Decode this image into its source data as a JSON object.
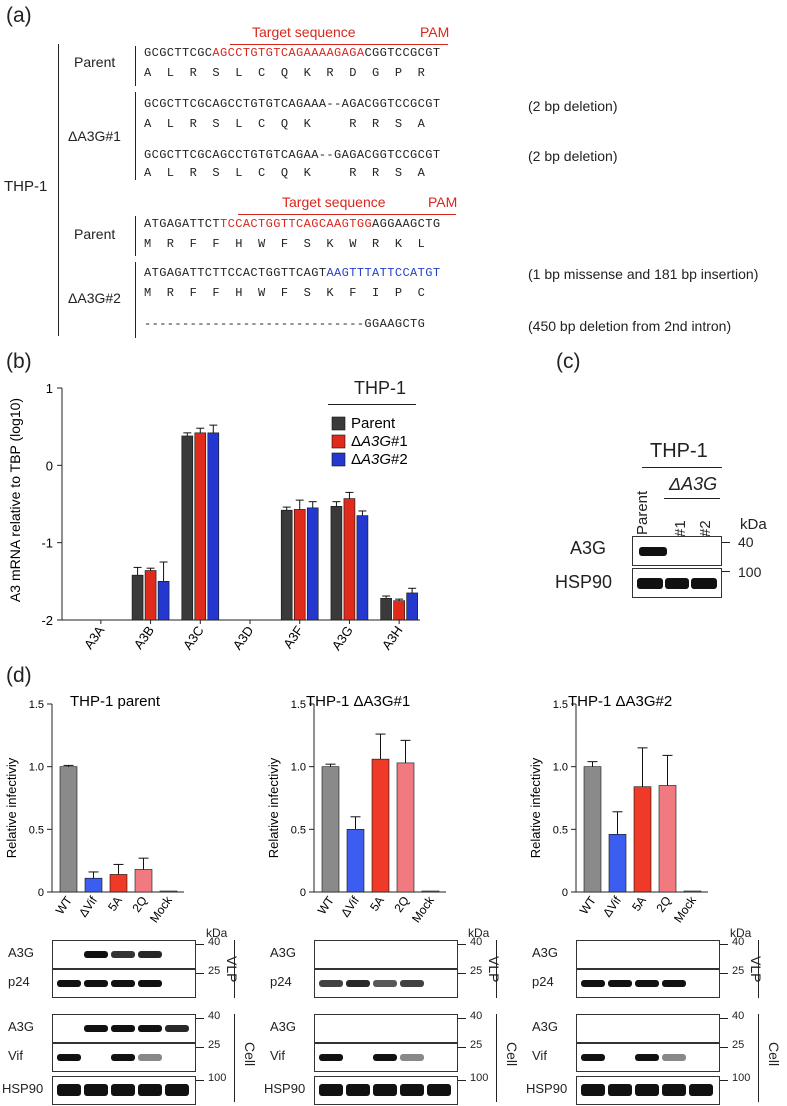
{
  "panel_a": {
    "label": "(a)",
    "cell_line": "THP-1",
    "target_label": "Target sequence",
    "pam_label": "PAM",
    "rows": [
      {
        "group": "Parent",
        "seq_pre": "GCGCTTCGC",
        "seq_target": "AGCCTGTGTCAGAAAAGAGA",
        "seq_post": "CGGTCCGCGT",
        "aa": "A  L  R  S  L  C  Q  K  R  D  G  P  R",
        "note": ""
      },
      {
        "group": "ΔA3G#1",
        "seq": "GCGCTTCGCAGCCTGTGTCAGAAA--AGACGGTCCGCGT",
        "aa": "A  L  R  S  L  C  Q  K     R  R  S  A",
        "note": "(2 bp deletion)"
      },
      {
        "group": "",
        "seq": "GCGCTTCGCAGCCTGTGTCAGAA--GAGACGGTCCGCGT",
        "aa": "A  L  R  S  L  C  Q  K     R  R  S  A",
        "note": "(2 bp deletion)"
      },
      {
        "group": "Parent",
        "seq_pre": "ATGAGATTCT",
        "seq_target": "TCCACTGGTTCAGCAAGTGG",
        "seq_post": "AGGAAGCTG",
        "aa": "M  R  F  F  H  W  F  S  K  W  R  K  L",
        "note": ""
      },
      {
        "group": "ΔA3G#2",
        "seq_pre": "ATGAGATTCTTCCACTGGTTCAGT",
        "seq_ins": "AAGTTTATTCCATGT",
        "aa": "M  R  F  F  H  W  F  S  K  F  I  P  C",
        "note": "(1 bp missense and 181 bp insertion)"
      },
      {
        "group": "",
        "seq": "-----------------------------GGAAGCTG",
        "aa": "",
        "note": "(450 bp deletion from 2nd intron)"
      }
    ]
  },
  "panel_b": {
    "label": "(b)",
    "legend_title": "THP-1",
    "colors": {
      "Parent": "#3a3a3a",
      "A3G1": "#e02a1c",
      "A3G2": "#2438d0"
    }
  },
  "panel_c": {
    "label": "(c)",
    "title": "THP-1",
    "sub": "ΔA3G",
    "lanes": [
      "Parent",
      "#1",
      "#2"
    ],
    "rows": [
      "A3G",
      "HSP90"
    ],
    "kda_label": "kDa",
    "markers": [
      "40",
      "100"
    ]
  },
  "panel_d": {
    "label": "(d)",
    "ylabel": "Relative infectiviy",
    "kda_label": "kDa",
    "blot_rows": [
      "A3G",
      "p24",
      "A3G",
      "Vif",
      "HSP90"
    ],
    "markers": [
      "40",
      "25",
      "40",
      "25",
      "100"
    ],
    "section_vlp": "VLP",
    "section_cell": "Cell"
  },
  "chart_data": [
    {
      "type": "bar",
      "title": "",
      "ylabel": "A3 mRNA relative to TBP (log10)",
      "xlabel": "",
      "categories": [
        "A3A",
        "A3B",
        "A3C",
        "A3D",
        "A3F",
        "A3G",
        "A3H"
      ],
      "ylim": [
        -2,
        1
      ],
      "yticks": [
        "1",
        "0",
        "-1",
        "-2"
      ],
      "series": [
        {
          "name": "Parent",
          "values": [
            null,
            -1.42,
            0.38,
            null,
            -0.58,
            -0.53,
            -1.72
          ],
          "errors": [
            null,
            0.1,
            0.04,
            null,
            0.04,
            0.06,
            0.03
          ]
        },
        {
          "name": "ΔA3G#1",
          "values": [
            null,
            -1.36,
            0.42,
            null,
            -0.57,
            -0.43,
            -1.75
          ],
          "errors": [
            null,
            0.03,
            0.06,
            null,
            0.12,
            0.08,
            0.02
          ]
        },
        {
          "name": "ΔA3G#2",
          "values": [
            null,
            -1.5,
            0.42,
            null,
            -0.55,
            -0.65,
            -1.65
          ],
          "errors": [
            null,
            0.25,
            0.1,
            null,
            0.08,
            0.06,
            0.06
          ]
        }
      ]
    },
    {
      "type": "bar",
      "title": "THP-1 parent",
      "ylabel": "Relative infectiviy",
      "categories": [
        "WT",
        "ΔVif",
        "5A",
        "2Q",
        "Mock"
      ],
      "ylim": [
        0,
        1.5
      ],
      "yticks": [
        "1.5",
        "1.0",
        "0.5",
        "0"
      ],
      "values": [
        1.0,
        0.11,
        0.14,
        0.18,
        0.0
      ],
      "errors": [
        0.01,
        0.05,
        0.08,
        0.09,
        0.0
      ],
      "colors": [
        "#8a8a8a",
        "#3b5ef0",
        "#f03a28",
        "#f07a80",
        "#8a8a8a"
      ]
    },
    {
      "type": "bar",
      "title": "THP-1 ΔA3G#1",
      "ylabel": "Relative infectiviy",
      "categories": [
        "WT",
        "ΔVif",
        "5A",
        "2Q",
        "Mock"
      ],
      "ylim": [
        0,
        1.5
      ],
      "yticks": [
        "1.5",
        "1.0",
        "0.5",
        "0"
      ],
      "values": [
        1.0,
        0.5,
        1.06,
        1.03,
        0.0
      ],
      "errors": [
        0.02,
        0.1,
        0.2,
        0.18,
        0.0
      ],
      "colors": [
        "#8a8a8a",
        "#3b5ef0",
        "#f03a28",
        "#f07a80",
        "#8a8a8a"
      ]
    },
    {
      "type": "bar",
      "title": "THP-1 ΔA3G#2",
      "ylabel": "Relative infectiviy",
      "categories": [
        "WT",
        "ΔVif",
        "5A",
        "2Q",
        "Mock"
      ],
      "ylim": [
        0,
        1.5
      ],
      "yticks": [
        "1.5",
        "1.0",
        "0.5",
        "0"
      ],
      "values": [
        1.0,
        0.46,
        0.84,
        0.85,
        0.0
      ],
      "errors": [
        0.04,
        0.18,
        0.31,
        0.24,
        0.0
      ],
      "colors": [
        "#8a8a8a",
        "#3b5ef0",
        "#f03a28",
        "#f07a80",
        "#8a8a8a"
      ]
    }
  ]
}
